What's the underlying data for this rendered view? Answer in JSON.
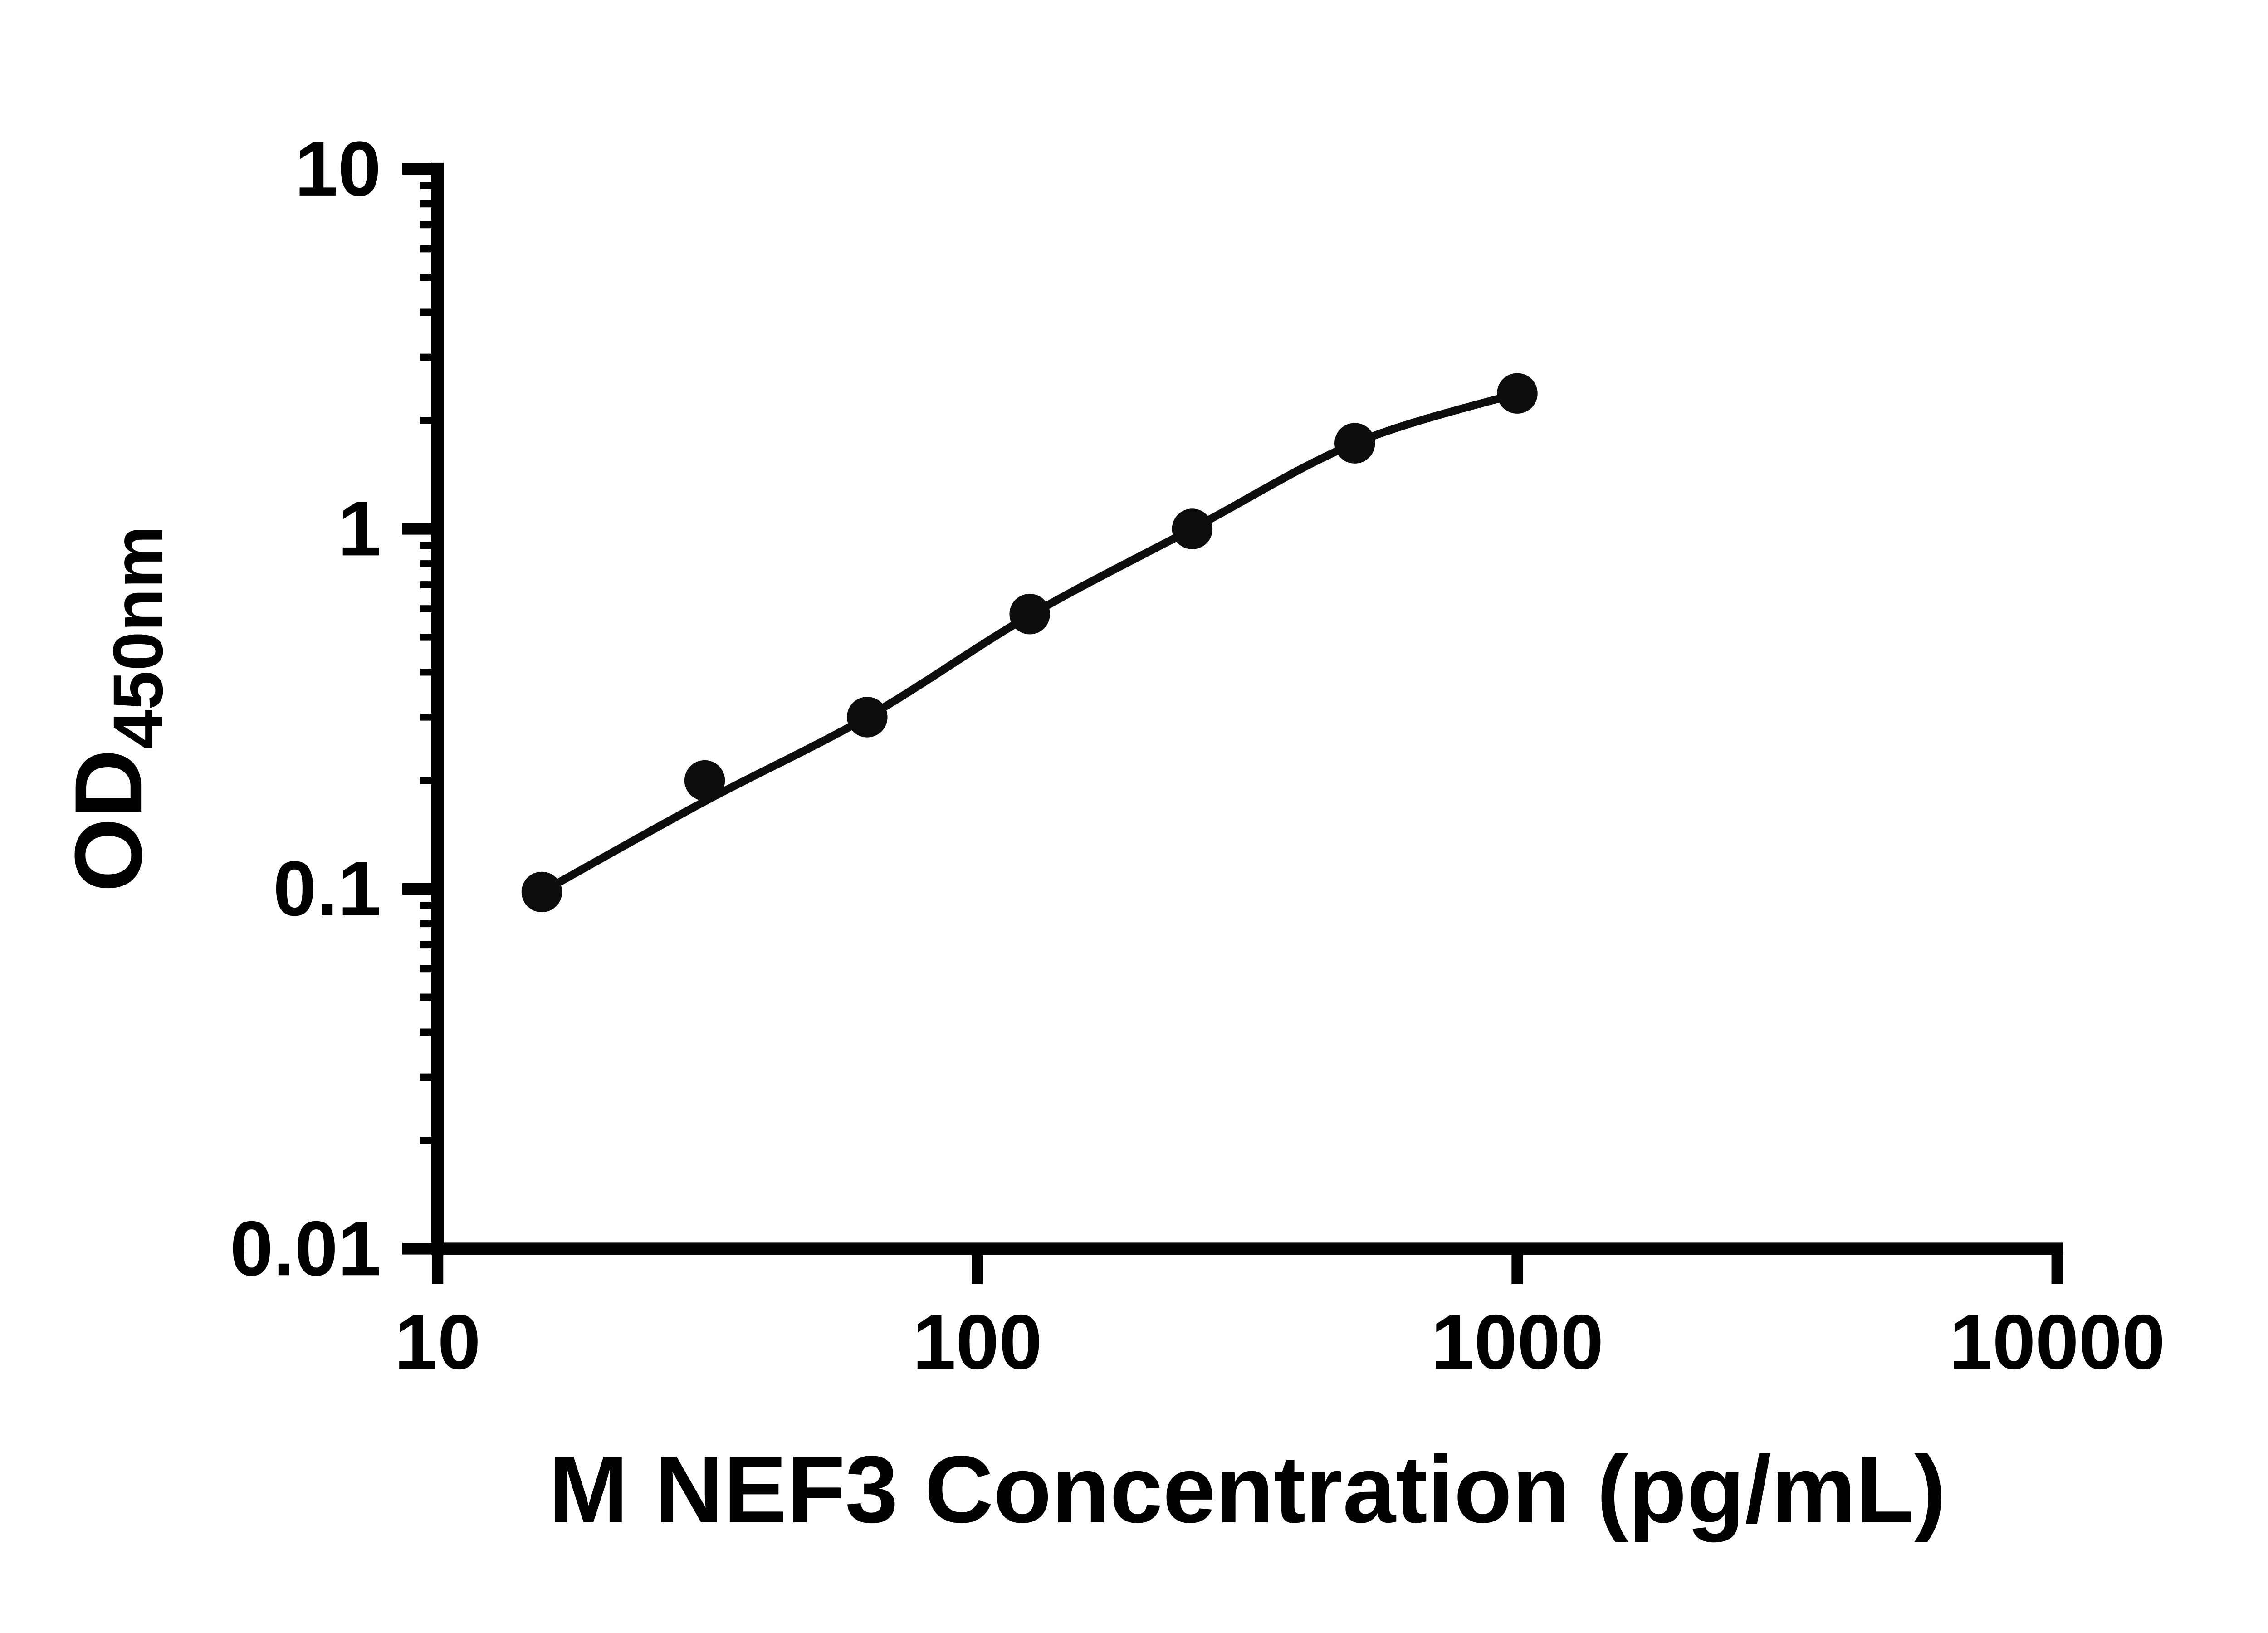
{
  "figure": {
    "background": "#ffffff"
  },
  "chart_data": {
    "type": "scatter",
    "title": "",
    "xlabel": "M NEF3 Concentration (pg/mL)",
    "ylabel_main": "OD",
    "ylabel_sub": "450nm",
    "x_scale": "log10",
    "y_scale": "log10",
    "xlim": [
      10,
      10000
    ],
    "ylim": [
      0.01,
      10
    ],
    "x_ticks": [
      10,
      100,
      1000,
      10000
    ],
    "x_tick_labels": [
      "10",
      "100",
      "1000",
      "10000"
    ],
    "y_ticks": [
      0.01,
      0.1,
      1,
      10
    ],
    "y_tick_labels": [
      "0.01",
      "0.1",
      "1",
      "10"
    ],
    "y_minor_ticks": true,
    "grid": false,
    "legend": false,
    "axis_color": "#000000",
    "marker_color": "#0d0d0d",
    "line_color": "#0d0d0d",
    "points": [
      {
        "x": 15.6,
        "y": 0.098
      },
      {
        "x": 31.25,
        "y": 0.2
      },
      {
        "x": 62.5,
        "y": 0.3
      },
      {
        "x": 125,
        "y": 0.58
      },
      {
        "x": 250,
        "y": 1.0
      },
      {
        "x": 500,
        "y": 1.73
      },
      {
        "x": 1000,
        "y": 2.38
      }
    ],
    "fit_curve": [
      {
        "x": 15.6,
        "y": 0.098
      },
      {
        "x": 31.25,
        "y": 0.175
      },
      {
        "x": 62.5,
        "y": 0.3
      },
      {
        "x": 125,
        "y": 0.575
      },
      {
        "x": 250,
        "y": 1.0
      },
      {
        "x": 500,
        "y": 1.73
      },
      {
        "x": 1000,
        "y": 2.38
      }
    ]
  }
}
